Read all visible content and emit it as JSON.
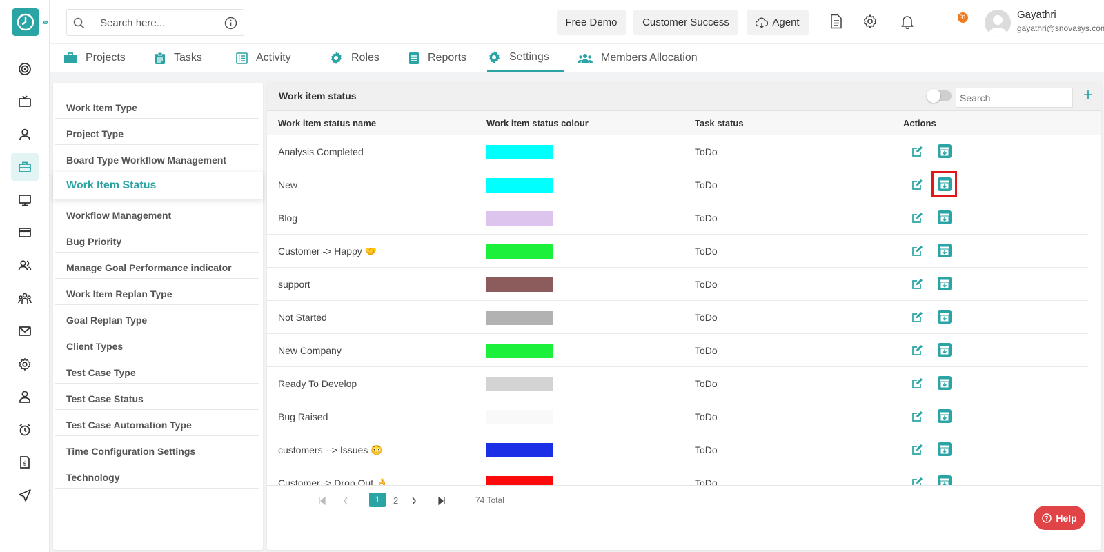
{
  "app": {
    "accent": "#2aa4a4"
  },
  "header": {
    "search_placeholder": "Search here...",
    "free_demo": "Free Demo",
    "customer_success": "Customer Success",
    "agent": "Agent",
    "notification_count": "31",
    "user_name": "Gayathri",
    "user_email": "gayathri@snovasys.com"
  },
  "tabs": [
    "Projects",
    "Tasks",
    "Activity",
    "Roles",
    "Reports",
    "Settings",
    "Members Allocation"
  ],
  "active_tab": "Settings",
  "settings_menu": {
    "items": [
      "Work Item Type",
      "Project Type",
      "Board Type Workflow Management",
      "Work Item Status",
      "Workflow Management",
      "Bug Priority",
      "Manage Goal Performance indicator",
      "Work Item Replan Type",
      "Goal Replan Type",
      "Client Types",
      "Test Case Type",
      "Test Case Status",
      "Test Case Automation Type",
      "Time Configuration Settings",
      "Technology"
    ],
    "active": "Work Item Status"
  },
  "main": {
    "title": "Work item status",
    "search_placeholder": "Search",
    "columns": [
      "Work item status name",
      "Work item status colour",
      "Task status",
      "Actions"
    ],
    "rows": [
      {
        "name": "Analysis Completed",
        "color": "#00ffff",
        "task_status": "ToDo"
      },
      {
        "name": "New",
        "color": "#00ffff",
        "task_status": "ToDo"
      },
      {
        "name": "Blog",
        "color": "#dcc4ee",
        "task_status": "ToDo"
      },
      {
        "name": "Customer -> Happy 🤝",
        "color": "#1cf03a",
        "task_status": "ToDo"
      },
      {
        "name": "support",
        "color": "#8c5c5c",
        "task_status": "ToDo"
      },
      {
        "name": "Not Started",
        "color": "#b2b2b2",
        "task_status": "ToDo"
      },
      {
        "name": "New Company",
        "color": "#1cf03a",
        "task_status": "ToDo"
      },
      {
        "name": "Ready To Develop",
        "color": "#d3d3d3",
        "task_status": "ToDo"
      },
      {
        "name": "Bug Raised",
        "color": "#f9f9f9",
        "task_status": "ToDo"
      },
      {
        "name": "customers --> Issues 😳",
        "color": "#1b2fe6",
        "task_status": "ToDo"
      },
      {
        "name": "Customer -> Drop Out 👌",
        "color": "#fa0a0a",
        "task_status": "ToDo"
      }
    ],
    "highlighted_action": "archive-button on row New"
  },
  "pagination": {
    "pages": [
      "1",
      "2"
    ],
    "current": "1",
    "total": "74 Total"
  },
  "help_label": "Help"
}
